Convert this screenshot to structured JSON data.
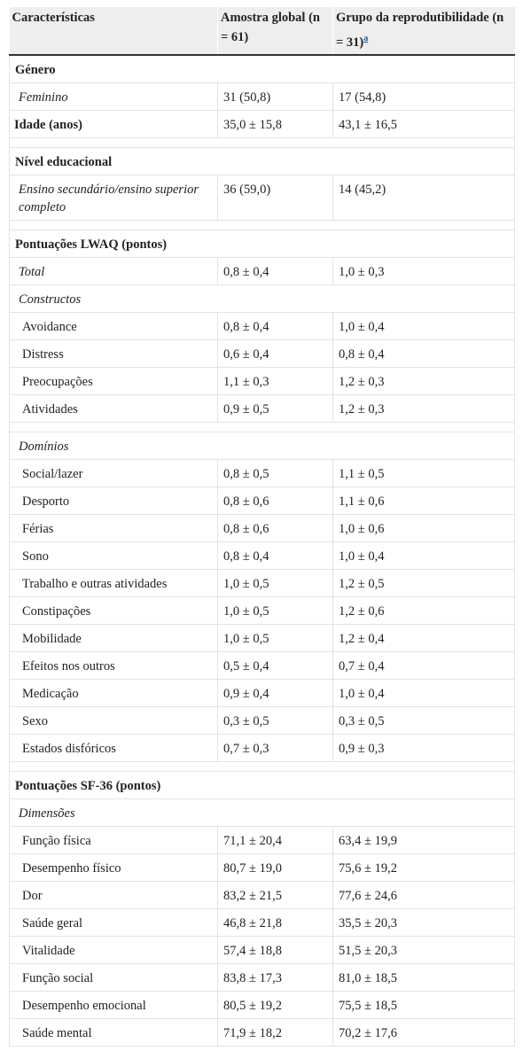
{
  "table": {
    "header": [
      "Características",
      "Amostra global (n = 61)",
      "Grupo da reprodutibilidade (n = 31)"
    ],
    "footnote_mark": "a",
    "rows": [
      {
        "kind": "section",
        "cells": [
          "Género"
        ]
      },
      {
        "kind": "italic",
        "cells": [
          "Feminino",
          "31 (50,8)",
          "17 (54,8)"
        ]
      },
      {
        "kind": "bold",
        "cells": [
          "Idade (anos)",
          "35,0 ± 15,8",
          "43,1 ± 16,5"
        ]
      },
      {
        "kind": "section",
        "cells": [
          "Nível educacional"
        ]
      },
      {
        "kind": "italic",
        "cells": [
          "Ensino secundário/ensino superior completo",
          "36 (59,0)",
          "14 (45,2)"
        ]
      },
      {
        "kind": "section",
        "cells": [
          "Pontuações LWAQ (pontos)"
        ]
      },
      {
        "kind": "italic",
        "cells": [
          "Total",
          "0,8 ± 0,4",
          "1,0 ± 0,3"
        ]
      },
      {
        "kind": "subsection",
        "cells": [
          "Constructos"
        ]
      },
      {
        "kind": "item",
        "cells": [
          "Avoidance",
          "0,8 ± 0,4",
          "1,0 ± 0,4"
        ]
      },
      {
        "kind": "item",
        "cells": [
          "Distress",
          "0,6 ± 0,4",
          "0,8 ± 0,4"
        ]
      },
      {
        "kind": "item",
        "cells": [
          "Preocupações",
          "1,1 ± 0,3",
          "1,2 ± 0,3"
        ]
      },
      {
        "kind": "item",
        "cells": [
          "Atividades",
          "0,9 ± 0,5",
          "1,2 ± 0,3"
        ]
      },
      {
        "kind": "subsection",
        "cells": [
          "Domínios"
        ],
        "gap": true
      },
      {
        "kind": "item",
        "cells": [
          "Social/lazer",
          "0,8 ± 0,5",
          "1,1 ± 0,5"
        ]
      },
      {
        "kind": "item",
        "cells": [
          "Desporto",
          "0,8 ± 0,6",
          "1,1 ± 0,6"
        ]
      },
      {
        "kind": "item",
        "cells": [
          "Férias",
          "0,8 ± 0,6",
          "1,0 ± 0,6"
        ]
      },
      {
        "kind": "item",
        "cells": [
          "Sono",
          "0,8 ± 0,4",
          "1,0 ± 0,4"
        ]
      },
      {
        "kind": "item",
        "cells": [
          "Trabalho e outras atividades",
          "1,0 ± 0,5",
          "1,2 ± 0,5"
        ]
      },
      {
        "kind": "item",
        "cells": [
          "Constipações",
          "1,0 ± 0,5",
          "1,2 ± 0,6"
        ]
      },
      {
        "kind": "item",
        "cells": [
          "Mobilidade",
          "1,0 ± 0,5",
          "1,2 ± 0,4"
        ]
      },
      {
        "kind": "item",
        "cells": [
          "Efeitos nos outros",
          "0,5 ± 0,4",
          "0,7 ± 0,4"
        ]
      },
      {
        "kind": "item",
        "cells": [
          "Medicação",
          "0,9 ± 0,4",
          "1,0 ± 0,4"
        ]
      },
      {
        "kind": "item",
        "cells": [
          "Sexo",
          "0,3 ± 0,5",
          "0,3 ± 0,5"
        ]
      },
      {
        "kind": "item",
        "cells": [
          "Estados disfóricos",
          "0,7 ± 0,3",
          "0,9 ± 0,3"
        ]
      },
      {
        "kind": "section",
        "cells": [
          "Pontuações SF-36 (pontos)"
        ]
      },
      {
        "kind": "subsection",
        "cells": [
          "Dimensões"
        ]
      },
      {
        "kind": "item",
        "cells": [
          "Função física",
          "71,1 ± 20,4",
          "63,4 ± 19,9"
        ]
      },
      {
        "kind": "item",
        "cells": [
          "Desempenho físico",
          "80,7 ± 19,0",
          "75,6 ± 19,2"
        ]
      },
      {
        "kind": "item",
        "cells": [
          "Dor",
          "83,2 ± 21,5",
          "77,6 ± 24,6"
        ]
      },
      {
        "kind": "item",
        "cells": [
          "Saúde geral",
          "46,8 ± 21,8",
          "35,5 ± 20,3"
        ]
      },
      {
        "kind": "item",
        "cells": [
          "Vitalidade",
          "57,4 ± 18,8",
          "51,5 ± 20,3"
        ]
      },
      {
        "kind": "item",
        "cells": [
          "Função social",
          "83,8 ± 17,3",
          "81,0 ± 18,5"
        ]
      },
      {
        "kind": "item",
        "cells": [
          "Desempenho emocional",
          "80,5 ± 19,2",
          "75,5 ± 18,5"
        ]
      },
      {
        "kind": "item",
        "cells": [
          "Saúde mental",
          "71,9 ± 18,2",
          "70,2 ± 17,6"
        ]
      }
    ]
  }
}
